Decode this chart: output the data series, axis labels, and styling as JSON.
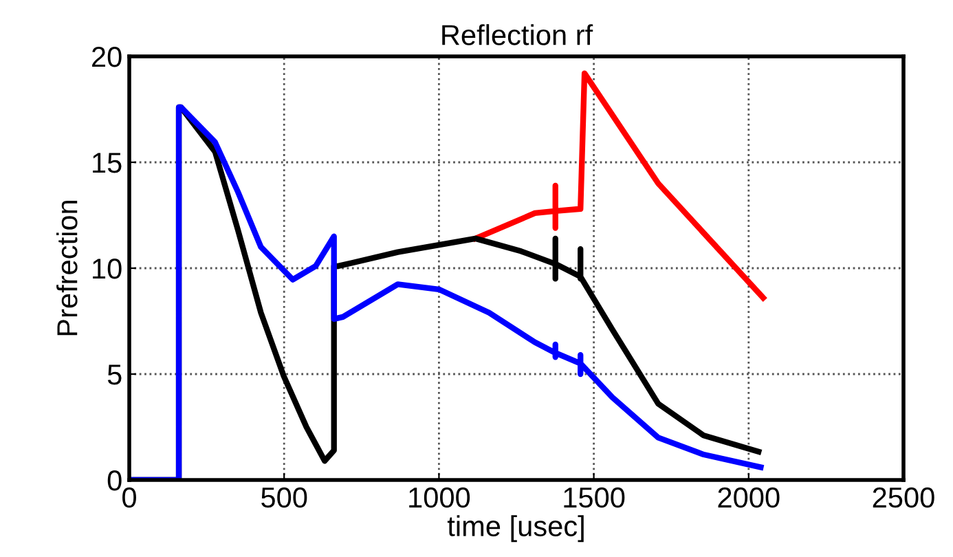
{
  "chart_data": {
    "type": "line",
    "title": "Reflection rf",
    "xlabel": "time [usec]",
    "ylabel": "Prefrection",
    "xlim": [
      0,
      2500
    ],
    "xticks": [
      0,
      500,
      1000,
      1500,
      2000,
      2500
    ],
    "ylim": [
      0,
      20
    ],
    "yticks": [
      0,
      5,
      10,
      15,
      20
    ],
    "grid": true,
    "line_style": "solid",
    "series": [
      {
        "color": "#ff0000",
        "x": [
          1118,
          1310,
          1376,
          1376,
          1376,
          1376,
          1457,
          1470,
          1708,
          2047
        ],
        "values": [
          11.4,
          12.6,
          12.7,
          13.9,
          11.9,
          12.7,
          12.8,
          19.2,
          14.0,
          8.6
        ]
      },
      {
        "color": "#000000",
        "x": [
          0,
          160,
          160,
          167,
          277,
          351,
          425,
          499,
          572,
          631,
          661,
          661,
          675,
          867,
          1118,
          1265,
          1376,
          1376,
          1376,
          1376,
          1457,
          1457,
          1457,
          1457,
          1560,
          1708,
          1855,
          2032
        ],
        "values": [
          0,
          0,
          17.6,
          17.6,
          15.5,
          11.8,
          7.9,
          4.9,
          2.5,
          0.9,
          1.4,
          10.1,
          10.1,
          10.76,
          11.4,
          10.8,
          10.2,
          11.4,
          9.5,
          10.2,
          9.6,
          10.9,
          9.5,
          9.6,
          7.1,
          3.6,
          2.1,
          1.34
        ]
      },
      {
        "color": "#0000ff",
        "x": [
          0,
          160,
          160,
          167,
          277,
          351,
          425,
          528,
          602,
          661,
          661,
          690,
          867,
          1000,
          1162,
          1310,
          1376,
          1376,
          1376,
          1376,
          1457,
          1457,
          1457,
          1457,
          1560,
          1708,
          1855,
          2039
        ],
        "values": [
          0,
          0,
          17.6,
          17.6,
          15.95,
          13.6,
          11.0,
          9.46,
          10.1,
          11.5,
          7.6,
          7.7,
          9.24,
          9.0,
          7.9,
          6.5,
          6.0,
          6.4,
          5.8,
          6.0,
          5.5,
          5.9,
          5.0,
          5.5,
          3.9,
          2.0,
          1.2,
          0.6
        ]
      }
    ]
  }
}
